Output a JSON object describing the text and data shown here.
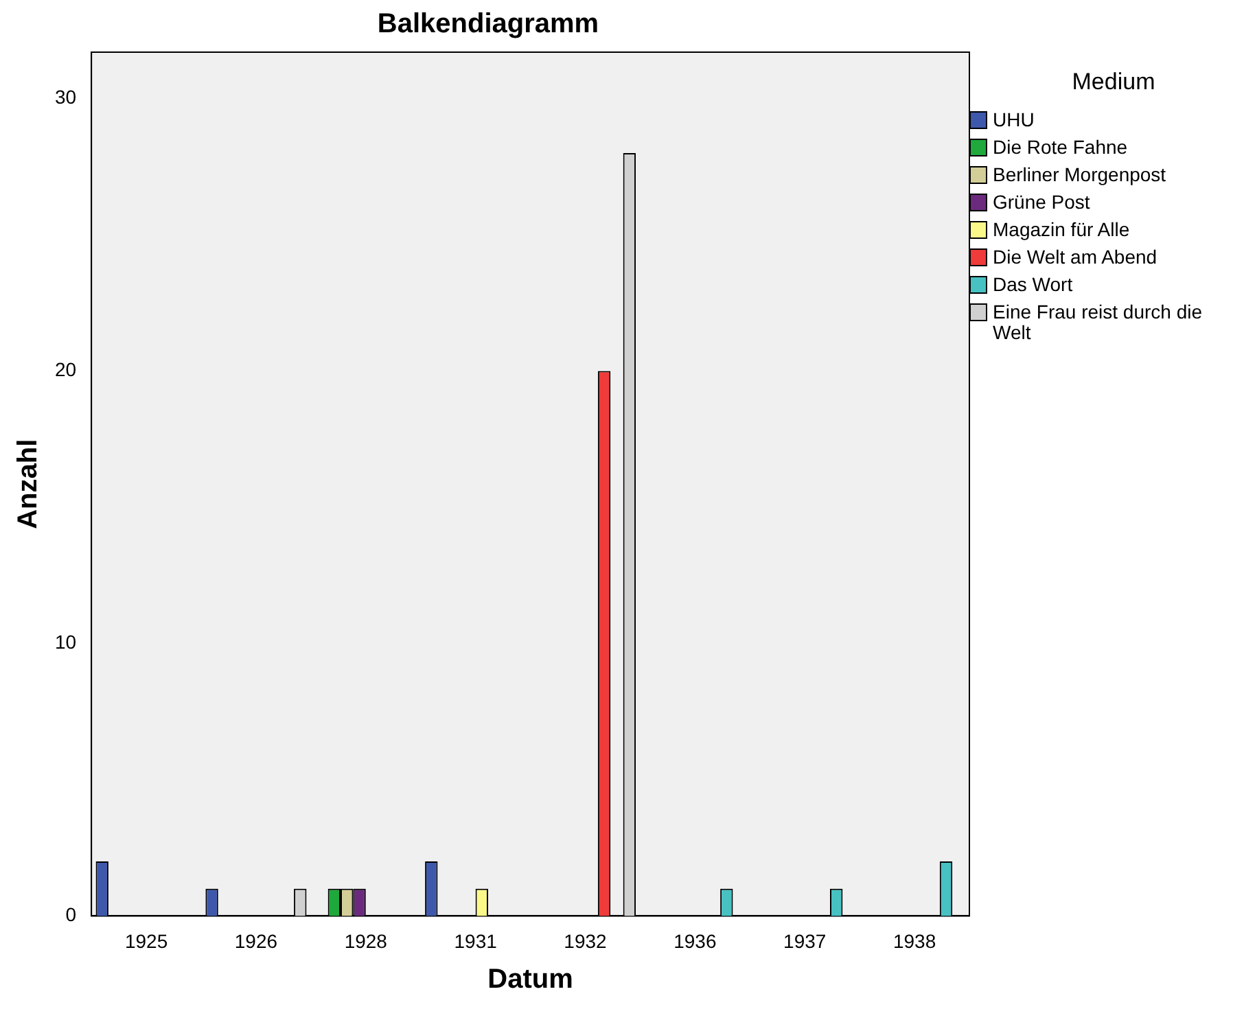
{
  "chart_data": {
    "type": "bar",
    "title": "Balkendiagramm",
    "xlabel": "Datum",
    "ylabel": "Anzahl",
    "legend_title": "Medium",
    "categories": [
      "1925",
      "1926",
      "1928",
      "1931",
      "1932",
      "1936",
      "1937",
      "1938"
    ],
    "series": [
      {
        "name": "UHU",
        "color": "#3e58ac",
        "values": [
          2,
          1,
          null,
          2,
          null,
          null,
          null,
          null
        ]
      },
      {
        "name": "Die Rote Fahne",
        "color": "#1fa83c",
        "values": [
          null,
          null,
          1,
          null,
          null,
          null,
          null,
          null
        ]
      },
      {
        "name": "Berliner Morgenpost",
        "color": "#d3ce97",
        "values": [
          null,
          null,
          1,
          null,
          null,
          null,
          null,
          null
        ]
      },
      {
        "name": "Grüne Post",
        "color": "#6b2a7d",
        "values": [
          null,
          null,
          1,
          null,
          null,
          null,
          null,
          null
        ]
      },
      {
        "name": "Magazin für Alle",
        "color": "#fbf88a",
        "values": [
          null,
          null,
          null,
          1,
          null,
          null,
          null,
          null
        ]
      },
      {
        "name": "Die Welt am Abend",
        "color": "#ef3b39",
        "values": [
          null,
          null,
          null,
          null,
          20,
          null,
          null,
          null
        ]
      },
      {
        "name": "Das Wort",
        "color": "#48c1c2",
        "values": [
          null,
          null,
          null,
          null,
          null,
          1,
          1,
          2
        ]
      },
      {
        "name": "Eine Frau reist durch die Welt",
        "color": "#d0d0d0",
        "values": [
          null,
          1,
          null,
          null,
          28,
          null,
          null,
          null
        ]
      }
    ],
    "ylim": [
      0,
      31.7
    ],
    "yticks": [
      0,
      10,
      20,
      30
    ],
    "grid": false,
    "legend": "right"
  }
}
